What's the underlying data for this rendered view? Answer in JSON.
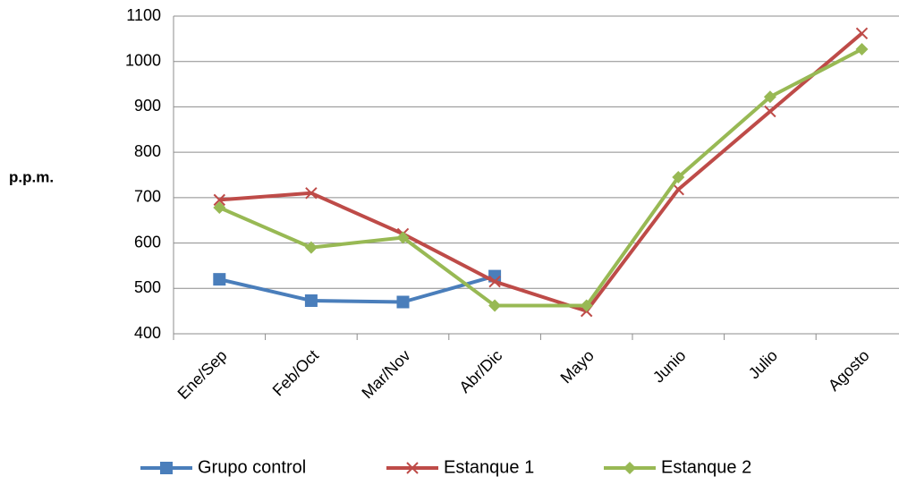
{
  "chart_data": {
    "type": "line",
    "y_label": "p.p.m.",
    "categories": [
      "Ene/Sep",
      "Feb/Oct",
      "Mar/Nov",
      "Abr/Dic",
      "Mayo",
      "Junio",
      "Julio",
      "Agosto"
    ],
    "series": [
      {
        "name": "Grupo control",
        "color": "#4a7ebb",
        "marker": "square",
        "values": [
          520,
          473,
          470,
          527,
          null,
          null,
          null,
          null
        ]
      },
      {
        "name": "Estanque 1",
        "color": "#be4b48",
        "marker": "x",
        "values": [
          695,
          710,
          620,
          515,
          450,
          718,
          890,
          1062
        ]
      },
      {
        "name": "Estanque 2",
        "color": "#98b954",
        "marker": "diamond",
        "values": [
          678,
          590,
          612,
          462,
          462,
          745,
          922,
          1027
        ]
      }
    ],
    "ylim": [
      400,
      1100
    ],
    "yticks": [
      400,
      500,
      600,
      700,
      800,
      900,
      1000,
      1100
    ],
    "grid": true
  }
}
